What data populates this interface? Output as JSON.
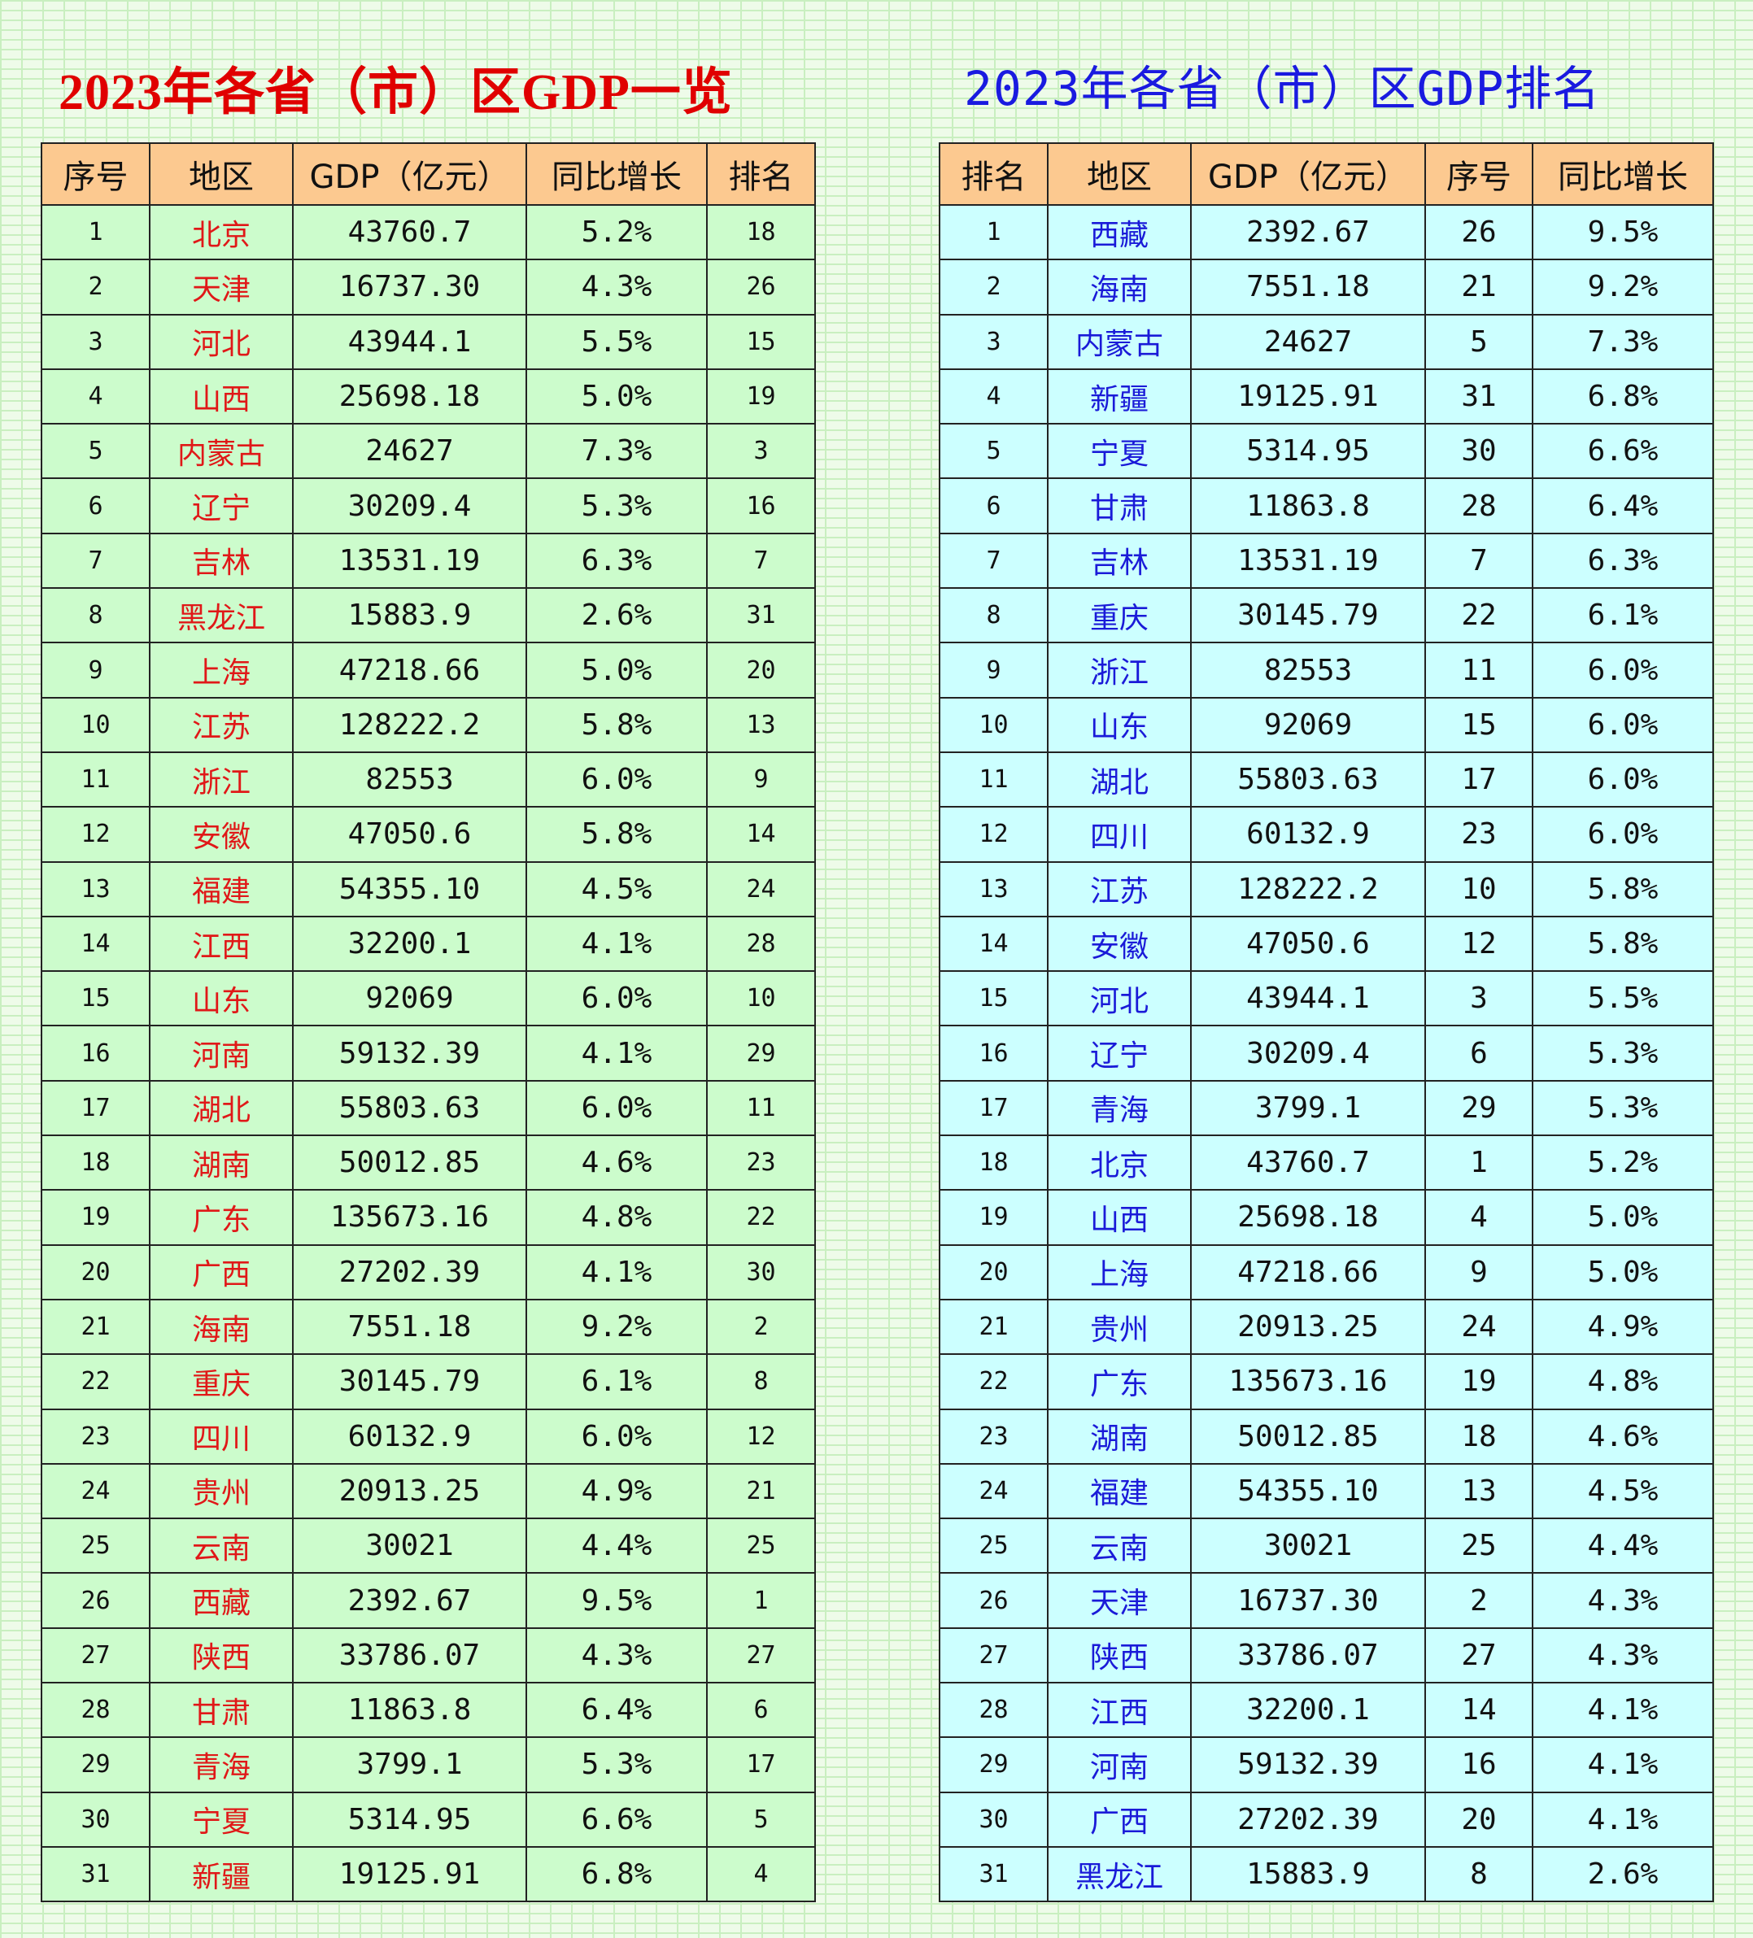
{
  "left": {
    "title": "2023年各省（市）区GDP一览",
    "headers": [
      "序号",
      "地区",
      "GDP（亿元）",
      "同比增长",
      "排名"
    ],
    "rows": [
      [
        "1",
        "北京",
        "43760.7",
        "5.2%",
        "18"
      ],
      [
        "2",
        "天津",
        "16737.30",
        "4.3%",
        "26"
      ],
      [
        "3",
        "河北",
        "43944.1",
        "5.5%",
        "15"
      ],
      [
        "4",
        "山西",
        "25698.18",
        "5.0%",
        "19"
      ],
      [
        "5",
        "内蒙古",
        "24627",
        "7.3%",
        "3"
      ],
      [
        "6",
        "辽宁",
        "30209.4",
        "5.3%",
        "16"
      ],
      [
        "7",
        "吉林",
        "13531.19",
        "6.3%",
        "7"
      ],
      [
        "8",
        "黑龙江",
        "15883.9",
        "2.6%",
        "31"
      ],
      [
        "9",
        "上海",
        "47218.66",
        "5.0%",
        "20"
      ],
      [
        "10",
        "江苏",
        "128222.2",
        "5.8%",
        "13"
      ],
      [
        "11",
        "浙江",
        "82553",
        "6.0%",
        "9"
      ],
      [
        "12",
        "安徽",
        "47050.6",
        "5.8%",
        "14"
      ],
      [
        "13",
        "福建",
        "54355.10",
        "4.5%",
        "24"
      ],
      [
        "14",
        "江西",
        "32200.1",
        "4.1%",
        "28"
      ],
      [
        "15",
        "山东",
        "92069",
        "6.0%",
        "10"
      ],
      [
        "16",
        "河南",
        "59132.39",
        "4.1%",
        "29"
      ],
      [
        "17",
        "湖北",
        "55803.63",
        "6.0%",
        "11"
      ],
      [
        "18",
        "湖南",
        "50012.85",
        "4.6%",
        "23"
      ],
      [
        "19",
        "广东",
        "135673.16",
        "4.8%",
        "22"
      ],
      [
        "20",
        "广西",
        "27202.39",
        "4.1%",
        "30"
      ],
      [
        "21",
        "海南",
        "7551.18",
        "9.2%",
        "2"
      ],
      [
        "22",
        "重庆",
        "30145.79",
        "6.1%",
        "8"
      ],
      [
        "23",
        "四川",
        "60132.9",
        "6.0%",
        "12"
      ],
      [
        "24",
        "贵州",
        "20913.25",
        "4.9%",
        "21"
      ],
      [
        "25",
        "云南",
        "30021",
        "4.4%",
        "25"
      ],
      [
        "26",
        "西藏",
        "2392.67",
        "9.5%",
        "1"
      ],
      [
        "27",
        "陕西",
        "33786.07",
        "4.3%",
        "27"
      ],
      [
        "28",
        "甘肃",
        "11863.8",
        "6.4%",
        "6"
      ],
      [
        "29",
        "青海",
        "3799.1",
        "5.3%",
        "17"
      ],
      [
        "30",
        "宁夏",
        "5314.95",
        "6.6%",
        "5"
      ],
      [
        "31",
        "新疆",
        "19125.91",
        "6.8%",
        "4"
      ]
    ]
  },
  "right": {
    "title": "2023年各省（市）区GDP排名",
    "headers": [
      "排名",
      "地区",
      "GDP（亿元）",
      "序号",
      "同比增长"
    ],
    "rows": [
      [
        "1",
        "西藏",
        "2392.67",
        "26",
        "9.5%"
      ],
      [
        "2",
        "海南",
        "7551.18",
        "21",
        "9.2%"
      ],
      [
        "3",
        "内蒙古",
        "24627",
        "5",
        "7.3%"
      ],
      [
        "4",
        "新疆",
        "19125.91",
        "31",
        "6.8%"
      ],
      [
        "5",
        "宁夏",
        "5314.95",
        "30",
        "6.6%"
      ],
      [
        "6",
        "甘肃",
        "11863.8",
        "28",
        "6.4%"
      ],
      [
        "7",
        "吉林",
        "13531.19",
        "7",
        "6.3%"
      ],
      [
        "8",
        "重庆",
        "30145.79",
        "22",
        "6.1%"
      ],
      [
        "9",
        "浙江",
        "82553",
        "11",
        "6.0%"
      ],
      [
        "10",
        "山东",
        "92069",
        "15",
        "6.0%"
      ],
      [
        "11",
        "湖北",
        "55803.63",
        "17",
        "6.0%"
      ],
      [
        "12",
        "四川",
        "60132.9",
        "23",
        "6.0%"
      ],
      [
        "13",
        "江苏",
        "128222.2",
        "10",
        "5.8%"
      ],
      [
        "14",
        "安徽",
        "47050.6",
        "12",
        "5.8%"
      ],
      [
        "15",
        "河北",
        "43944.1",
        "3",
        "5.5%"
      ],
      [
        "16",
        "辽宁",
        "30209.4",
        "6",
        "5.3%"
      ],
      [
        "17",
        "青海",
        "3799.1",
        "29",
        "5.3%"
      ],
      [
        "18",
        "北京",
        "43760.7",
        "1",
        "5.2%"
      ],
      [
        "19",
        "山西",
        "25698.18",
        "4",
        "5.0%"
      ],
      [
        "20",
        "上海",
        "47218.66",
        "9",
        "5.0%"
      ],
      [
        "21",
        "贵州",
        "20913.25",
        "24",
        "4.9%"
      ],
      [
        "22",
        "广东",
        "135673.16",
        "19",
        "4.8%"
      ],
      [
        "23",
        "湖南",
        "50012.85",
        "18",
        "4.6%"
      ],
      [
        "24",
        "福建",
        "54355.10",
        "13",
        "4.5%"
      ],
      [
        "25",
        "云南",
        "30021",
        "25",
        "4.4%"
      ],
      [
        "26",
        "天津",
        "16737.30",
        "2",
        "4.3%"
      ],
      [
        "27",
        "陕西",
        "33786.07",
        "27",
        "4.3%"
      ],
      [
        "28",
        "江西",
        "32200.1",
        "14",
        "4.1%"
      ],
      [
        "29",
        "河南",
        "59132.39",
        "16",
        "4.1%"
      ],
      [
        "30",
        "广西",
        "27202.39",
        "20",
        "4.1%"
      ],
      [
        "31",
        "黑龙江",
        "15883.9",
        "8",
        "2.6%"
      ]
    ]
  },
  "colors": {
    "left_title": "#e00000",
    "right_title": "#1a1ae0",
    "header_bg": "#fcc990",
    "left_row_bg": "#ccfccc",
    "right_row_bg": "#ccffff"
  }
}
